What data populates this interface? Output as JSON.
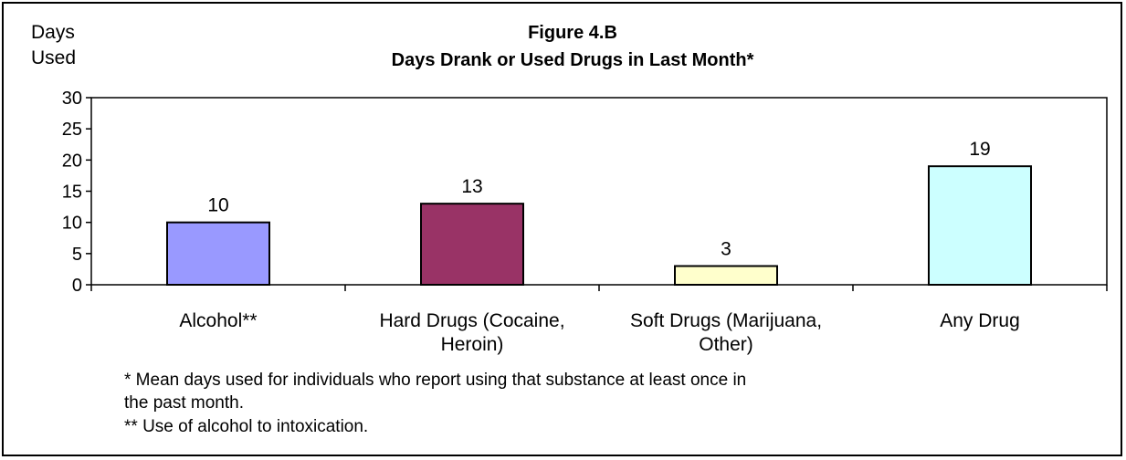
{
  "chart_data": {
    "type": "bar",
    "title": "Figure 4.B",
    "subtitle": "Days Drank or Used Drugs in Last Month*",
    "ylabel_lines": [
      "Days",
      "Used"
    ],
    "ylim": [
      0,
      30
    ],
    "yticks": [
      0,
      5,
      10,
      15,
      20,
      25,
      30
    ],
    "grid": false,
    "categories": [
      [
        "Alcohol**"
      ],
      [
        "Hard Drugs (Cocaine,",
        "Heroin)"
      ],
      [
        "Soft Drugs (Marijuana,",
        "Other)"
      ],
      [
        "Any Drug"
      ]
    ],
    "values": [
      10,
      13,
      3,
      19
    ],
    "colors": [
      "#9999FF",
      "#993366",
      "#FFFFCC",
      "#CCFFFF"
    ]
  },
  "footnotes": {
    "line1": "* Mean days used for individuals who report using that substance at least once in",
    "line2": "the past month.",
    "line3": "** Use of alcohol to intoxication."
  }
}
